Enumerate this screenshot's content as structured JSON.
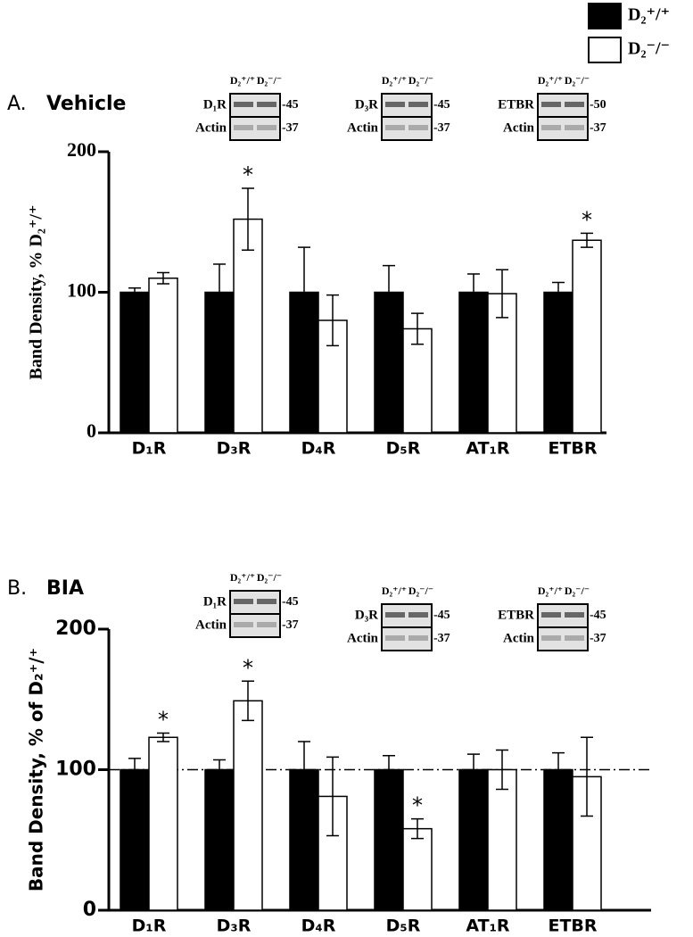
{
  "legend": {
    "position": "top-right"
  },
  "chart_data": [
    {
      "type": "bar",
      "panel": "A.",
      "title": "Vehicle",
      "ylabel": "Band Density, % D₂⁺/⁺",
      "categories": [
        "D₁R",
        "D₃R",
        "D₄R",
        "D₅R",
        "AT₁R",
        "ETBR"
      ],
      "ylim": [
        0,
        200
      ],
      "yticks": [
        0,
        100,
        200
      ],
      "series": [
        {
          "name": "D₂⁺/⁺",
          "color": "#000000",
          "values": [
            100,
            100,
            100,
            100,
            100,
            100
          ],
          "errors": [
            3,
            20,
            32,
            19,
            13,
            7
          ],
          "markers": [
            null,
            null,
            null,
            null,
            null,
            null
          ]
        },
        {
          "name": "D₂⁻/⁻",
          "color": "#ffffff",
          "values": [
            110,
            152,
            80,
            74,
            99,
            137
          ],
          "errors": [
            4,
            22,
            18,
            11,
            17,
            5
          ],
          "markers": [
            null,
            "*",
            null,
            null,
            null,
            "*"
          ]
        }
      ],
      "blots": [
        {
          "lanes": [
            "D₂⁺/⁺",
            "D₂⁻/⁻"
          ],
          "bands": [
            "D₁R",
            "Actin"
          ],
          "sizes": [
            "-45",
            "-37"
          ]
        },
        {
          "lanes": [
            "D₂⁺/⁺",
            "D₂⁻/⁻"
          ],
          "bands": [
            "D₃R",
            "Actin"
          ],
          "sizes": [
            "-45",
            "-37"
          ]
        },
        {
          "lanes": [
            "D₂⁺/⁺",
            "D₂⁻/⁻"
          ],
          "bands": [
            "ETBR",
            "Actin"
          ],
          "sizes": [
            "-50",
            "-37"
          ]
        }
      ]
    },
    {
      "type": "bar",
      "panel": "B.",
      "title": "BIA",
      "ylabel": "Band Density, % of D₂⁺/⁺",
      "categories": [
        "D₁R",
        "D₃R",
        "D₄R",
        "D₅R",
        "AT₁R",
        "ETBR"
      ],
      "ylim": [
        0,
        200
      ],
      "yticks": [
        0,
        100,
        200
      ],
      "hline": 100,
      "series": [
        {
          "name": "D₂⁺/⁺",
          "color": "#000000",
          "values": [
            100,
            100,
            100,
            100,
            100,
            100
          ],
          "errors": [
            8,
            7,
            20,
            10,
            11,
            12
          ],
          "markers": [
            null,
            null,
            null,
            null,
            null,
            null
          ]
        },
        {
          "name": "D₂⁻/⁻",
          "color": "#ffffff",
          "values": [
            123,
            149,
            81,
            58,
            100,
            95
          ],
          "errors": [
            3,
            14,
            28,
            7,
            14,
            28
          ],
          "markers": [
            "*",
            "*",
            null,
            "*",
            null,
            null
          ]
        }
      ],
      "blots": [
        {
          "lanes": [
            "D₂⁺/⁺",
            "D₂⁻/⁻"
          ],
          "bands": [
            "D₁R",
            "Actin"
          ],
          "sizes": [
            "-45",
            "-37"
          ]
        },
        {
          "lanes": [
            "D₂⁺/⁺",
            "D₂⁻/⁻"
          ],
          "bands": [
            "D₃R",
            "Actin"
          ],
          "sizes": [
            "-45",
            "-37"
          ]
        },
        {
          "lanes": [
            "D₂⁺/⁺",
            "D₂⁻/⁻"
          ],
          "bands": [
            "ETBR",
            "Actin"
          ],
          "sizes": [
            "-45",
            "-37"
          ]
        }
      ]
    }
  ]
}
